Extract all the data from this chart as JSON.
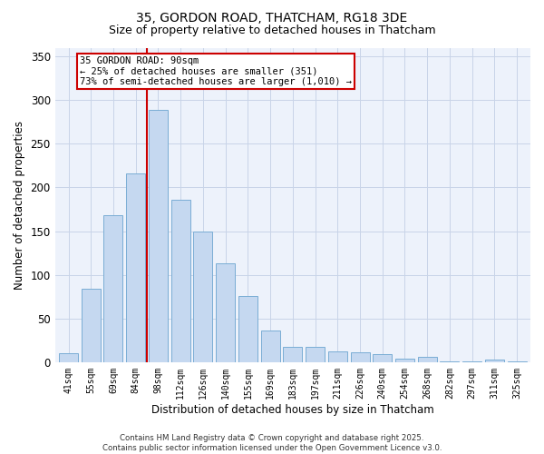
{
  "title_line1": "35, GORDON ROAD, THATCHAM, RG18 3DE",
  "title_line2": "Size of property relative to detached houses in Thatcham",
  "xlabel": "Distribution of detached houses by size in Thatcham",
  "ylabel": "Number of detached properties",
  "bar_color": "#c5d8f0",
  "bar_edge_color": "#7aadd4",
  "categories": [
    "41sqm",
    "55sqm",
    "69sqm",
    "84sqm",
    "98sqm",
    "112sqm",
    "126sqm",
    "140sqm",
    "155sqm",
    "169sqm",
    "183sqm",
    "197sqm",
    "211sqm",
    "226sqm",
    "240sqm",
    "254sqm",
    "268sqm",
    "282sqm",
    "297sqm",
    "311sqm",
    "325sqm"
  ],
  "values": [
    10,
    84,
    168,
    216,
    289,
    186,
    150,
    113,
    76,
    36,
    17,
    17,
    12,
    11,
    9,
    4,
    6,
    1,
    1,
    3,
    1
  ],
  "ylim": [
    0,
    360
  ],
  "yticks": [
    0,
    50,
    100,
    150,
    200,
    250,
    300,
    350
  ],
  "vline_x": 3.5,
  "annotation_box_text": "35 GORDON ROAD: 90sqm\n← 25% of detached houses are smaller (351)\n73% of semi-detached houses are larger (1,010) →",
  "vline_color": "#cc0000",
  "grid_color": "#c8d4e8",
  "background_color": "#edf2fb",
  "footnote": "Contains HM Land Registry data © Crown copyright and database right 2025.\nContains public sector information licensed under the Open Government Licence v3.0."
}
